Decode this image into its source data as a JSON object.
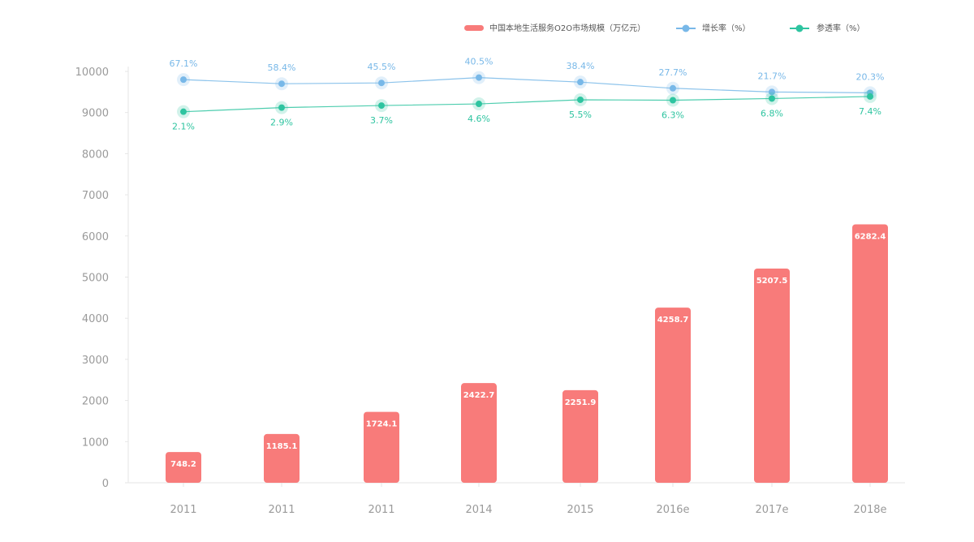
{
  "chart_data": {
    "type": "bar",
    "categories": [
      "2011",
      "2011",
      "2011",
      "2014",
      "2015",
      "2016e",
      "2017e",
      "2018e"
    ],
    "ylim": [
      0,
      10000
    ],
    "yticks": [
      "0",
      "1000",
      "2000",
      "3000",
      "4000",
      "5000",
      "6000",
      "7000",
      "8000",
      "9000",
      "10000"
    ],
    "series": [
      {
        "name": "中国本地生活服务O2O市场规模（万亿元）",
        "type": "bar",
        "color": "#f87b7a",
        "values": [
          748.2,
          1185.1,
          1724.1,
          2422.7,
          2251.9,
          4258.7,
          5207.5,
          6282.4
        ],
        "labels": [
          "748.2",
          "1185.1",
          "1724.1",
          "2422.7",
          "2251.9",
          "4258.7",
          "5207.5",
          "6282.4"
        ]
      },
      {
        "name": "增长率（%）",
        "type": "line",
        "color": "#78b8e8",
        "values": [
          67.1,
          58.4,
          45.5,
          40.5,
          38.4,
          27.7,
          21.7,
          20.3
        ],
        "labels": [
          "67.1%",
          "58.4%",
          "45.5%",
          "40.5%",
          "38.4%",
          "27.7%",
          "21.7%",
          "20.3%"
        ],
        "plotted_y": [
          9800,
          9700,
          9720,
          9850,
          9740,
          9590,
          9500,
          9480
        ]
      },
      {
        "name": "参透率（%）",
        "type": "line",
        "color": "#2ec4a0",
        "values": [
          2.1,
          2.9,
          3.7,
          4.6,
          5.5,
          6.3,
          6.8,
          7.4
        ],
        "labels": [
          "2.1%",
          "2.9%",
          "3.7%",
          "4.6%",
          "5.5%",
          "6.3%",
          "6.8%",
          "7.4%"
        ],
        "plotted_y": [
          9020,
          9120,
          9170,
          9210,
          9310,
          9300,
          9340,
          9390
        ]
      }
    ],
    "legend_position": "top-right",
    "grid": false
  }
}
